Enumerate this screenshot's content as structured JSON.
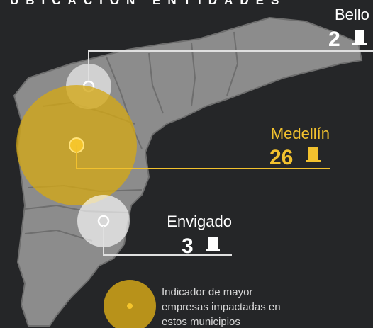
{
  "header": {
    "title": "UBICACIÓN ENTIDADES"
  },
  "locations": [
    {
      "name": "Bello",
      "count": 2
    },
    {
      "name": "Medellín",
      "count": 26
    },
    {
      "name": "Envigado",
      "count": 3
    }
  ],
  "legend": {
    "lines": [
      "Indicador de mayor",
      "empresas impactadas en",
      "estos municipios"
    ]
  }
}
